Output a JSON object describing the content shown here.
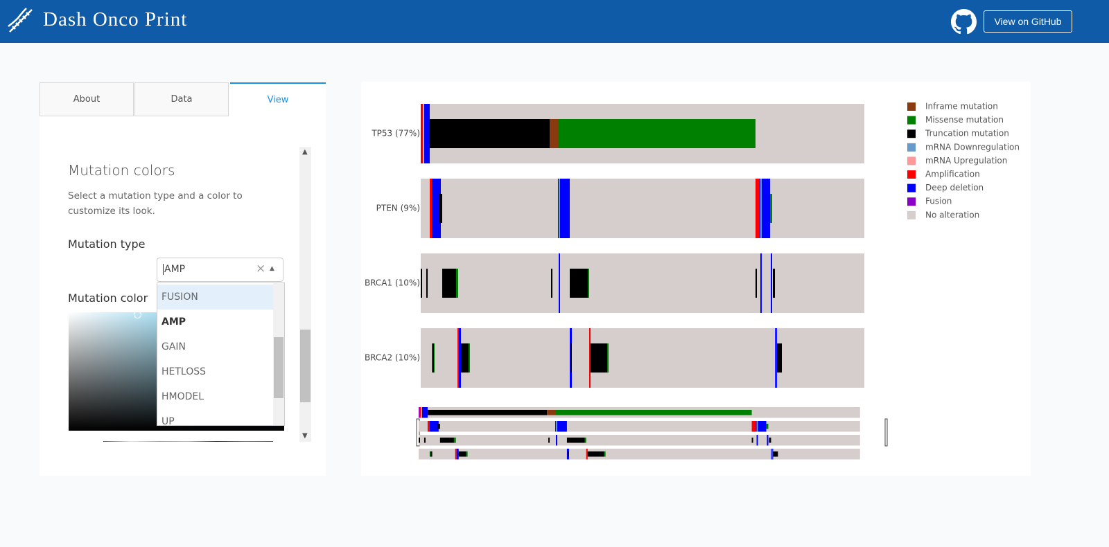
{
  "header": {
    "title": "Dash Onco Print",
    "github_button": "View on GitHub"
  },
  "tabs": [
    "About",
    "Data",
    "View"
  ],
  "view_panel": {
    "heading": "Mutation colors",
    "description": "Select a mutation type and a color to customize its look.",
    "mutation_type_label": "Mutation type",
    "mutation_type_value": "AMP",
    "options": [
      "FUSION",
      "AMP",
      "GAIN",
      "HETLOSS",
      "HMODEL",
      "UP"
    ],
    "mutation_color_label": "Mutation color"
  },
  "oncoprint": {
    "tracks": [
      "TP53 (77%)",
      "PTEN (9%)",
      "BRCA1 (10%)",
      "BRCA2 (10%)"
    ],
    "legend": [
      {
        "label": "Inframe mutation",
        "color": "#8b3a0f"
      },
      {
        "label": "Missense mutation",
        "color": "#008000"
      },
      {
        "label": "Truncation mutation",
        "color": "#000000"
      },
      {
        "label": "mRNA Downregulation",
        "color": "#6699cc"
      },
      {
        "label": "mRNA Upregulation",
        "color": "#ff9999"
      },
      {
        "label": "Amplification",
        "color": "#ff0000"
      },
      {
        "label": "Deep deletion",
        "color": "#0000ff"
      },
      {
        "label": "Fusion",
        "color": "#8b00c9"
      },
      {
        "label": "No alteration",
        "color": "#d6cdcd"
      }
    ]
  }
}
